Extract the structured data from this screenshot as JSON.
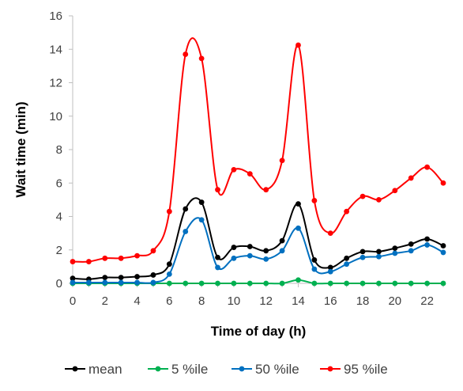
{
  "chart_data": {
    "type": "line",
    "xlabel": "Time of day (h)",
    "ylabel": "Wait time (min)",
    "xlim": [
      0,
      23
    ],
    "ylim": [
      0,
      16
    ],
    "x_ticks": [
      0,
      2,
      4,
      6,
      8,
      10,
      12,
      14,
      16,
      18,
      20,
      22
    ],
    "y_ticks": [
      0,
      2,
      4,
      6,
      8,
      10,
      12,
      14,
      16
    ],
    "grid": false,
    "smooth": true,
    "legend_placement": "bottom",
    "x": [
      0,
      1,
      2,
      3,
      4,
      5,
      6,
      7,
      8,
      9,
      10,
      11,
      12,
      13,
      14,
      15,
      16,
      17,
      18,
      19,
      20,
      21,
      22,
      23
    ],
    "series": [
      {
        "name": "mean",
        "color": "#000000",
        "values": [
          0.3,
          0.25,
          0.35,
          0.35,
          0.4,
          0.5,
          1.15,
          4.45,
          4.85,
          1.55,
          2.15,
          2.2,
          1.95,
          2.55,
          4.75,
          1.4,
          0.95,
          1.5,
          1.9,
          1.9,
          2.1,
          2.35,
          2.65,
          2.25
        ]
      },
      {
        "name": "5 %ile",
        "color": "#00b050",
        "values": [
          0,
          0,
          0,
          0,
          0,
          0,
          0,
          0,
          0,
          0,
          0,
          0,
          0,
          0,
          0.2,
          0,
          0,
          0,
          0,
          0,
          0,
          0,
          0,
          0
        ]
      },
      {
        "name": "50 %ile",
        "color": "#0070c0",
        "values": [
          0.05,
          0.05,
          0.05,
          0.05,
          0.05,
          0.05,
          0.55,
          3.1,
          3.8,
          0.95,
          1.5,
          1.65,
          1.45,
          1.95,
          3.3,
          0.85,
          0.7,
          1.15,
          1.55,
          1.6,
          1.8,
          1.95,
          2.3,
          1.85
        ]
      },
      {
        "name": "95 %ile",
        "color": "#ff0000",
        "values": [
          1.3,
          1.3,
          1.5,
          1.5,
          1.65,
          1.95,
          4.3,
          13.7,
          13.45,
          5.6,
          6.8,
          6.55,
          5.6,
          7.35,
          14.25,
          4.95,
          3.0,
          4.3,
          5.2,
          5.0,
          5.55,
          6.3,
          6.95,
          6.0
        ]
      }
    ]
  }
}
